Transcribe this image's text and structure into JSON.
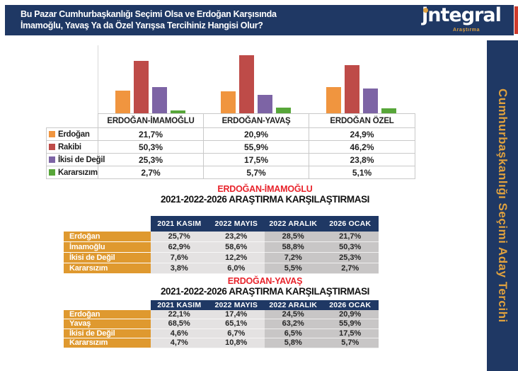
{
  "header": {
    "title_line1": "Bu Pazar Cumhurbaşkanlığı Seçimi Olsa ve Erdoğan Karşısında",
    "title_line2": "İmamoğlu, Yavaş Ya da Özel Yarışsa Tercihiniz Hangisi Olur?",
    "logo_initial": "j",
    "logo_rest": "ntegral",
    "logo_subtitle": "Araştırma"
  },
  "sidebar": {
    "vertical_text": "Cumhurbaşkanlığı Seçimi Aday Tercihi"
  },
  "colors": {
    "navy": "#1F3864",
    "gold": "#DFA13F",
    "title_red": "#E8232B",
    "red_strip": "#CE3B2C",
    "label_orange": "#DF992F",
    "gray_light": "#E4E2E2",
    "gray_dark": "#C8C6C6"
  },
  "chart_data": [
    {
      "type": "bar",
      "title": "",
      "categories": [
        "ERDOĞAN-İMAMOĞLU",
        "ERDOĞAN-YAVAŞ",
        "ERDOĞAN ÖZEL"
      ],
      "series": [
        {
          "name": "Erdoğan",
          "color": "#F0953F",
          "values": [
            21.7,
            20.9,
            24.9
          ]
        },
        {
          "name": "Rakibi",
          "color": "#BE4B48",
          "values": [
            50.3,
            55.9,
            46.2
          ]
        },
        {
          "name": "İkisi de Değil",
          "color": "#7D64A5",
          "values": [
            25.3,
            17.5,
            23.8
          ]
        },
        {
          "name": "Kararsızım",
          "color": "#57A639",
          "values": [
            2.7,
            5.7,
            5.1
          ]
        }
      ],
      "value_suffix": "%",
      "decimal_separator": ",",
      "ylim": [
        0,
        60
      ],
      "grid": false,
      "legend_position": "left-table"
    },
    {
      "type": "table",
      "title": "ERDOĞAN-İMAMOĞLU",
      "subtitle": "2021-2022-2026 ARAŞTIRMA KARŞILAŞTIRMASI",
      "columns": [
        "2021 KASIM",
        "2022 MAYIS",
        "2022 ARALIK",
        "2026 OCAK"
      ],
      "rows": [
        {
          "label": "Erdoğan",
          "values": [
            "25,7%",
            "23,2%",
            "28,5%",
            "21,7%"
          ]
        },
        {
          "label": "İmamoğlu",
          "values": [
            "62,9%",
            "58,6%",
            "58,8%",
            "50,3%"
          ]
        },
        {
          "label": "İkisi de Değil",
          "values": [
            "7,6%",
            "12,2%",
            "7,2%",
            "25,3%"
          ]
        },
        {
          "label": "Kararsızım",
          "values": [
            "3,8%",
            "6,0%",
            "5,5%",
            "2,7%"
          ]
        }
      ]
    },
    {
      "type": "table",
      "title": "ERDOĞAN-YAVAŞ",
      "subtitle": "2021-2022-2026 ARAŞTIRMA KARŞILAŞTIRMASI",
      "columns": [
        "2021 KASIM",
        "2022 MAYIS",
        "2022 ARALIK",
        "2026 OCAK"
      ],
      "rows": [
        {
          "label": "Erdoğan",
          "values": [
            "22,1%",
            "17,4%",
            "24,5%",
            "20,9%"
          ]
        },
        {
          "label": "Yavaş",
          "values": [
            "68,5%",
            "65,1%",
            "63,2%",
            "55,9%"
          ]
        },
        {
          "label": "İkisi de Değil",
          "values": [
            "4,6%",
            "6,7%",
            "6,5%",
            "17,5%"
          ]
        },
        {
          "label": "Kararsızım",
          "values": [
            "4,7%",
            "10,8%",
            "5,8%",
            "5,7%"
          ]
        }
      ]
    }
  ]
}
